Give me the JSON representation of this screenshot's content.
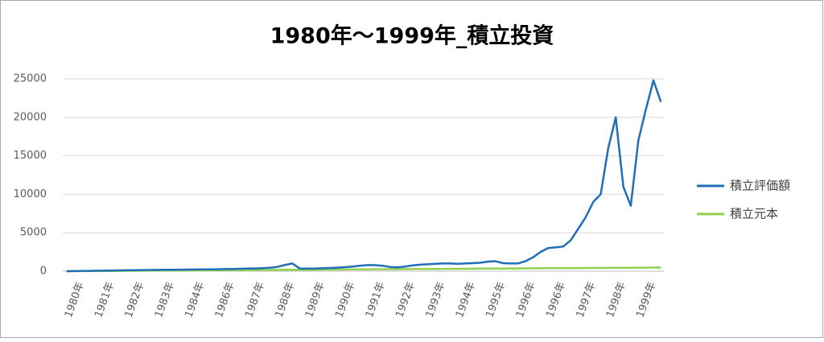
{
  "chart_data": {
    "type": "line",
    "title": "1980年～1999年_積立投資",
    "categories": [
      "1980年",
      null,
      null,
      null,
      "1981年",
      null,
      null,
      null,
      "1982年",
      null,
      null,
      null,
      "1983年",
      null,
      null,
      null,
      "1984年",
      null,
      null,
      null,
      "1986年",
      null,
      null,
      null,
      "1987年",
      null,
      null,
      null,
      "1988年",
      null,
      null,
      null,
      "1989年",
      null,
      null,
      null,
      "1990年",
      null,
      null,
      null,
      "1991年",
      null,
      null,
      null,
      "1992年",
      null,
      null,
      null,
      "1993年",
      null,
      null,
      null,
      "1994年",
      null,
      null,
      null,
      "1995年",
      null,
      null,
      null,
      "1996年",
      null,
      null,
      null,
      "1996年",
      null,
      null,
      null,
      "1997年",
      null,
      null,
      null,
      "1998年",
      null,
      null,
      null,
      "1999年",
      null,
      null,
      null
    ],
    "series": [
      {
        "name": "積立評価額",
        "color": "#1f6fb8",
        "values": [
          0,
          15,
          30,
          45,
          60,
          75,
          90,
          105,
          120,
          135,
          150,
          160,
          170,
          180,
          190,
          200,
          210,
          220,
          230,
          240,
          250,
          270,
          290,
          310,
          330,
          360,
          400,
          450,
          550,
          800,
          1000,
          350,
          330,
          350,
          380,
          420,
          460,
          520,
          600,
          700,
          800,
          780,
          700,
          550,
          500,
          600,
          750,
          850,
          900,
          950,
          1000,
          1000,
          950,
          1000,
          1050,
          1100,
          1250,
          1300,
          1050,
          1000,
          1000,
          1300,
          1800,
          2500,
          3000,
          3100,
          3200,
          4000,
          5500,
          7000,
          9000,
          10000,
          16000,
          20000,
          11000,
          8500,
          17000,
          21000,
          24800,
          22000
        ]
      },
      {
        "name": "積立元本",
        "color": "#92d050",
        "values": [
          0,
          6,
          12,
          18,
          24,
          30,
          36,
          42,
          48,
          54,
          60,
          66,
          72,
          78,
          84,
          90,
          96,
          102,
          108,
          114,
          120,
          126,
          132,
          138,
          144,
          150,
          156,
          162,
          168,
          174,
          180,
          186,
          192,
          198,
          204,
          210,
          216,
          222,
          228,
          234,
          240,
          246,
          252,
          258,
          264,
          270,
          276,
          282,
          288,
          294,
          300,
          306,
          312,
          318,
          324,
          330,
          336,
          342,
          348,
          354,
          360,
          366,
          372,
          378,
          384,
          390,
          396,
          402,
          408,
          414,
          420,
          426,
          432,
          438,
          444,
          450,
          456,
          462,
          468,
          474
        ]
      }
    ],
    "ylim": [
      0,
      25000
    ],
    "yticks": [
      0,
      5000,
      10000,
      15000,
      20000,
      25000
    ],
    "grid": true,
    "legend": "right"
  }
}
